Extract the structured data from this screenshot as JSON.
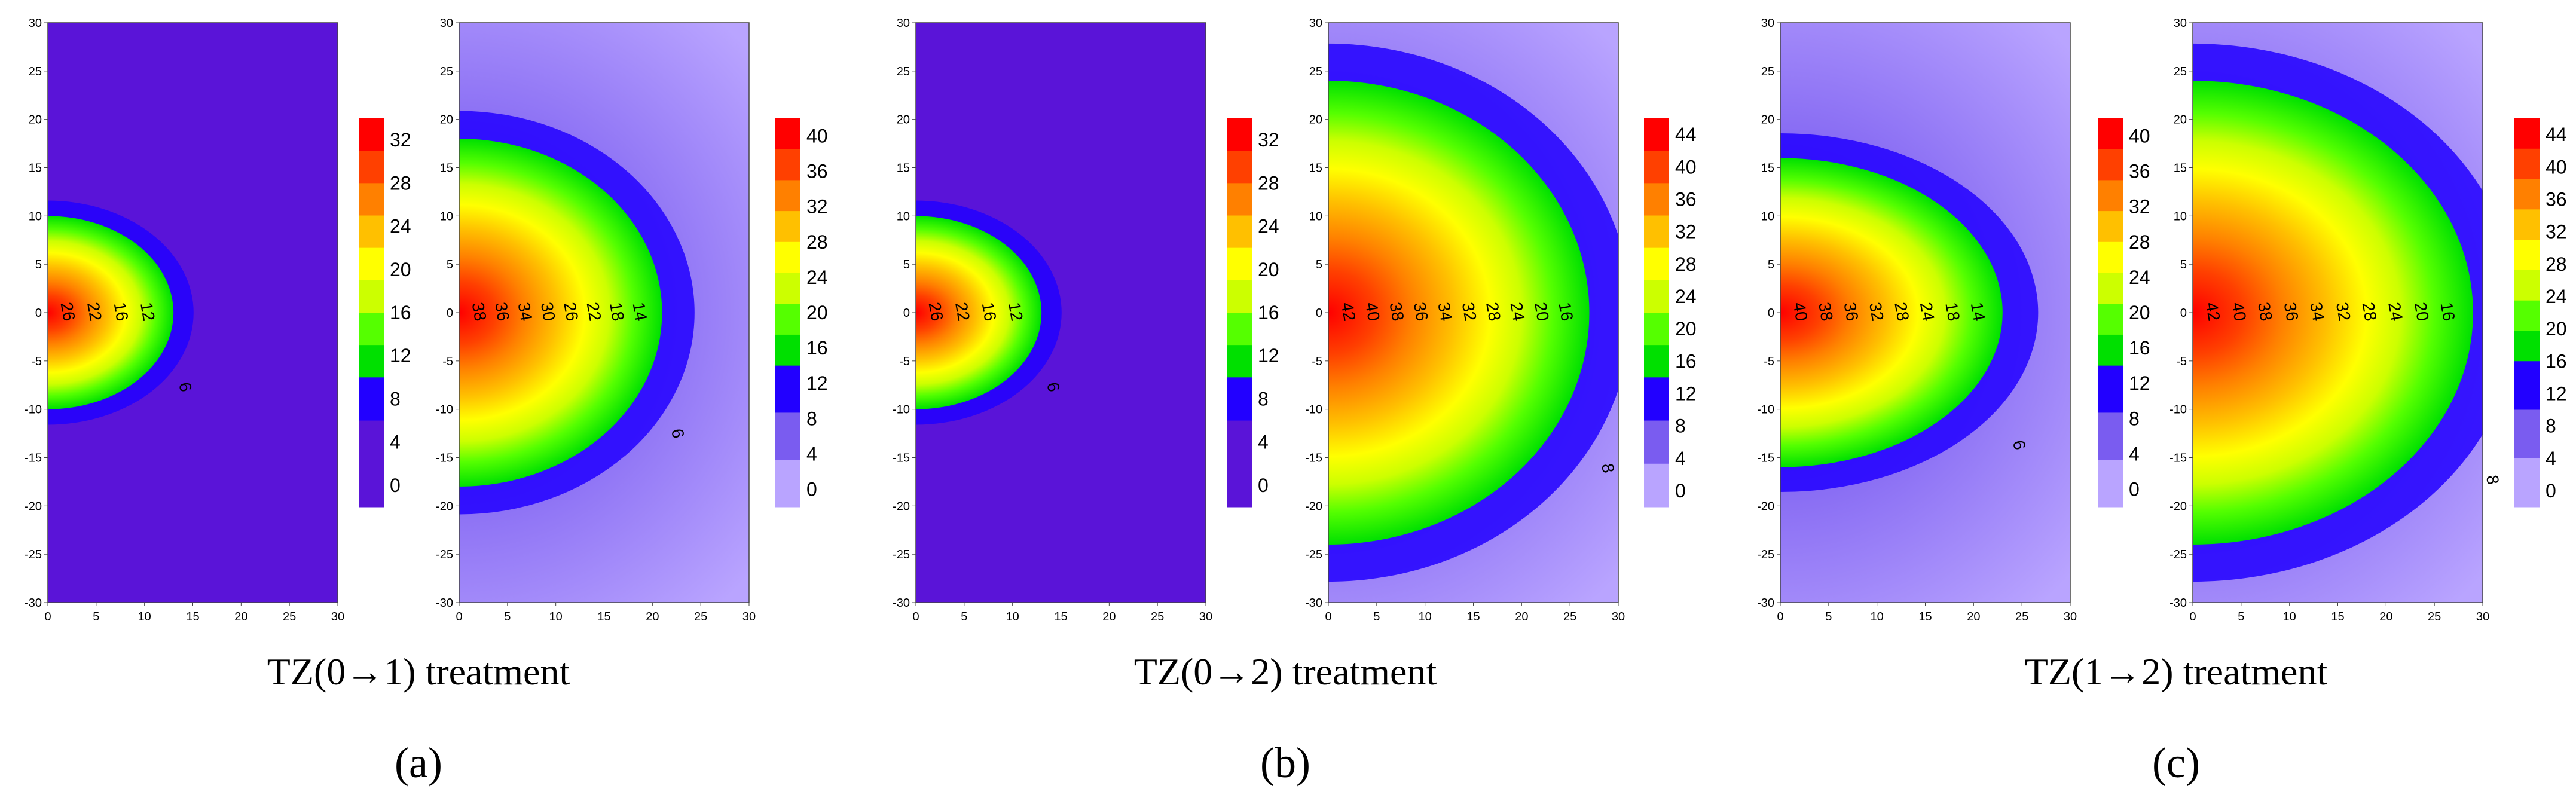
{
  "figure": {
    "captions": [
      "TZ(0→1) treatment",
      "TZ(0→2) treatment",
      "TZ(1→2) treatment"
    ],
    "panel_labels": [
      "(a)",
      "(b)",
      "(c)"
    ]
  },
  "chart_data": [
    {
      "type": "contour",
      "panel": "a",
      "side": "left",
      "xlim": [
        0,
        30
      ],
      "ylim": [
        -30,
        30
      ],
      "xticks": [
        "0",
        "5",
        "10",
        "15",
        "20",
        "25",
        "30"
      ],
      "yticks": [
        "30",
        "25",
        "20",
        "15",
        "10",
        "5",
        "0",
        "-5",
        "-10",
        "-15",
        "-20",
        "-25",
        "-30"
      ],
      "front_extent_x": 13,
      "front_extent_y": 10,
      "contour_labels": [
        "26",
        "22",
        "16",
        "12",
        "6"
      ],
      "colorbar": {
        "ticks": [
          "32",
          "28",
          "24",
          "20",
          "16",
          "12",
          "8",
          "4",
          "0"
        ],
        "max": 34,
        "min": -2,
        "split": 10
      }
    },
    {
      "type": "contour",
      "panel": "a",
      "side": "right",
      "xlim": [
        0,
        30
      ],
      "ylim": [
        -30,
        30
      ],
      "xticks": [
        "0",
        "5",
        "10",
        "15",
        "20",
        "25",
        "30"
      ],
      "yticks": [
        "30",
        "25",
        "20",
        "15",
        "10",
        "5",
        "0",
        "-5",
        "-10",
        "-15",
        "-20",
        "-25",
        "-30"
      ],
      "front_extent_x": 21,
      "front_extent_y": 18,
      "contour_labels": [
        "38",
        "36",
        "34",
        "30",
        "26",
        "22",
        "18",
        "14",
        "6"
      ],
      "colorbar": {
        "ticks": [
          "40",
          "36",
          "32",
          "28",
          "24",
          "20",
          "16",
          "12",
          "8",
          "4",
          "0"
        ],
        "max": 42,
        "min": -2,
        "split": 14
      }
    },
    {
      "type": "contour",
      "panel": "b",
      "side": "left",
      "xlim": [
        0,
        30
      ],
      "ylim": [
        -30,
        30
      ],
      "xticks": [
        "0",
        "5",
        "10",
        "15",
        "20",
        "25",
        "30"
      ],
      "yticks": [
        "30",
        "25",
        "20",
        "15",
        "10",
        "5",
        "0",
        "-5",
        "-10",
        "-15",
        "-20",
        "-25",
        "-30"
      ],
      "front_extent_x": 13,
      "front_extent_y": 10,
      "contour_labels": [
        "26",
        "22",
        "16",
        "12",
        "6"
      ],
      "colorbar": {
        "ticks": [
          "32",
          "28",
          "24",
          "20",
          "16",
          "12",
          "8",
          "4",
          "0"
        ],
        "max": 34,
        "min": -2,
        "split": 10
      }
    },
    {
      "type": "contour",
      "panel": "b",
      "side": "right",
      "xlim": [
        0,
        30
      ],
      "ylim": [
        -30,
        30
      ],
      "xticks": [
        "0",
        "5",
        "10",
        "15",
        "20",
        "25",
        "30"
      ],
      "yticks": [
        "30",
        "25",
        "20",
        "15",
        "10",
        "5",
        "0",
        "-5",
        "-10",
        "-15",
        "-20",
        "-25",
        "-30"
      ],
      "front_extent_x": 27,
      "front_extent_y": 24,
      "contour_labels": [
        "42",
        "40",
        "38",
        "36",
        "34",
        "32",
        "28",
        "24",
        "20",
        "16",
        "8"
      ],
      "colorbar": {
        "ticks": [
          "44",
          "40",
          "36",
          "32",
          "28",
          "24",
          "20",
          "16",
          "12",
          "8",
          "4",
          "0"
        ],
        "max": 46,
        "min": -2,
        "split": 14
      }
    },
    {
      "type": "contour",
      "panel": "c",
      "side": "left",
      "xlim": [
        0,
        30
      ],
      "ylim": [
        -30,
        30
      ],
      "xticks": [
        "0",
        "5",
        "10",
        "15",
        "20",
        "25",
        "30"
      ],
      "yticks": [
        "30",
        "25",
        "20",
        "15",
        "10",
        "5",
        "0",
        "-5",
        "-10",
        "-15",
        "-20",
        "-25",
        "-30"
      ],
      "front_extent_x": 23,
      "front_extent_y": 16,
      "contour_labels": [
        "40",
        "38",
        "36",
        "32",
        "28",
        "24",
        "18",
        "14",
        "6"
      ],
      "colorbar": {
        "ticks": [
          "40",
          "36",
          "32",
          "28",
          "24",
          "20",
          "16",
          "12",
          "8",
          "4",
          "0"
        ],
        "max": 42,
        "min": -2,
        "split": 14
      }
    },
    {
      "type": "contour",
      "panel": "c",
      "side": "right",
      "xlim": [
        0,
        30
      ],
      "ylim": [
        -30,
        30
      ],
      "xticks": [
        "0",
        "5",
        "10",
        "15",
        "20",
        "25",
        "30"
      ],
      "yticks": [
        "30",
        "25",
        "20",
        "15",
        "10",
        "5",
        "0",
        "-5",
        "-10",
        "-15",
        "-20",
        "-25",
        "-30"
      ],
      "front_extent_x": 29,
      "front_extent_y": 24,
      "contour_labels": [
        "42",
        "40",
        "38",
        "36",
        "34",
        "32",
        "28",
        "24",
        "20",
        "16",
        "8"
      ],
      "colorbar": {
        "ticks": [
          "44",
          "40",
          "36",
          "32",
          "28",
          "24",
          "20",
          "16",
          "12",
          "8",
          "4",
          "0"
        ],
        "max": 46,
        "min": -2,
        "split": 16
      }
    }
  ],
  "colors": {
    "ramp": [
      "#2200ff",
      "#00e000",
      "#55ff00",
      "#ccff00",
      "#ffff00",
      "#ffc000",
      "#ff8000",
      "#ff4000",
      "#ff0000"
    ],
    "cold_low": "#5a14d8",
    "cold_mid": "#7a5cf0",
    "cold_light": "#b9a4ff"
  }
}
